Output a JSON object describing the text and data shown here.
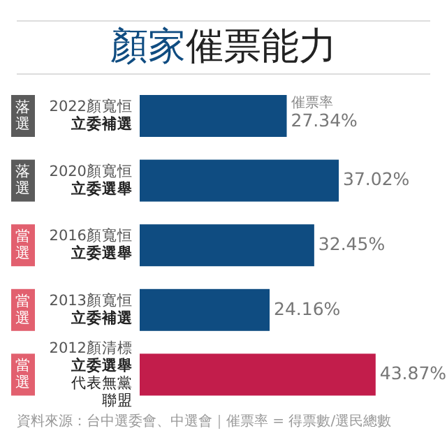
{
  "chart_data": {
    "type": "bar",
    "orientation": "horizontal",
    "title": "顏家催票能力",
    "categories": [
      "2022顏寬恒立委補選",
      "2020顏寬恒立委選舉",
      "2016顏寬恒立委選舉",
      "2013顏寬恒立委補選",
      "2012顏清標立委選舉代表無黨聯盟"
    ],
    "values": [
      27.34,
      37.02,
      32.45,
      24.16,
      43.87
    ],
    "colors": [
      "#0f4c81",
      "#0f4c81",
      "#0f4c81",
      "#0f4c81",
      "#c21d4b"
    ],
    "value_labels": [
      "27.34%",
      "37.02%",
      "32.45%",
      "24.16%",
      "43.87%"
    ],
    "annotations": [
      {
        "text": "催票率",
        "x": 27.34,
        "y": "2022顏寬恒立委補選"
      },
      "落選",
      "落選",
      "當選",
      "當選",
      "當選",
      "資料來源：台中選委會、中選會｜催票率 = 得票數/選民總數"
    ]
  }
}
